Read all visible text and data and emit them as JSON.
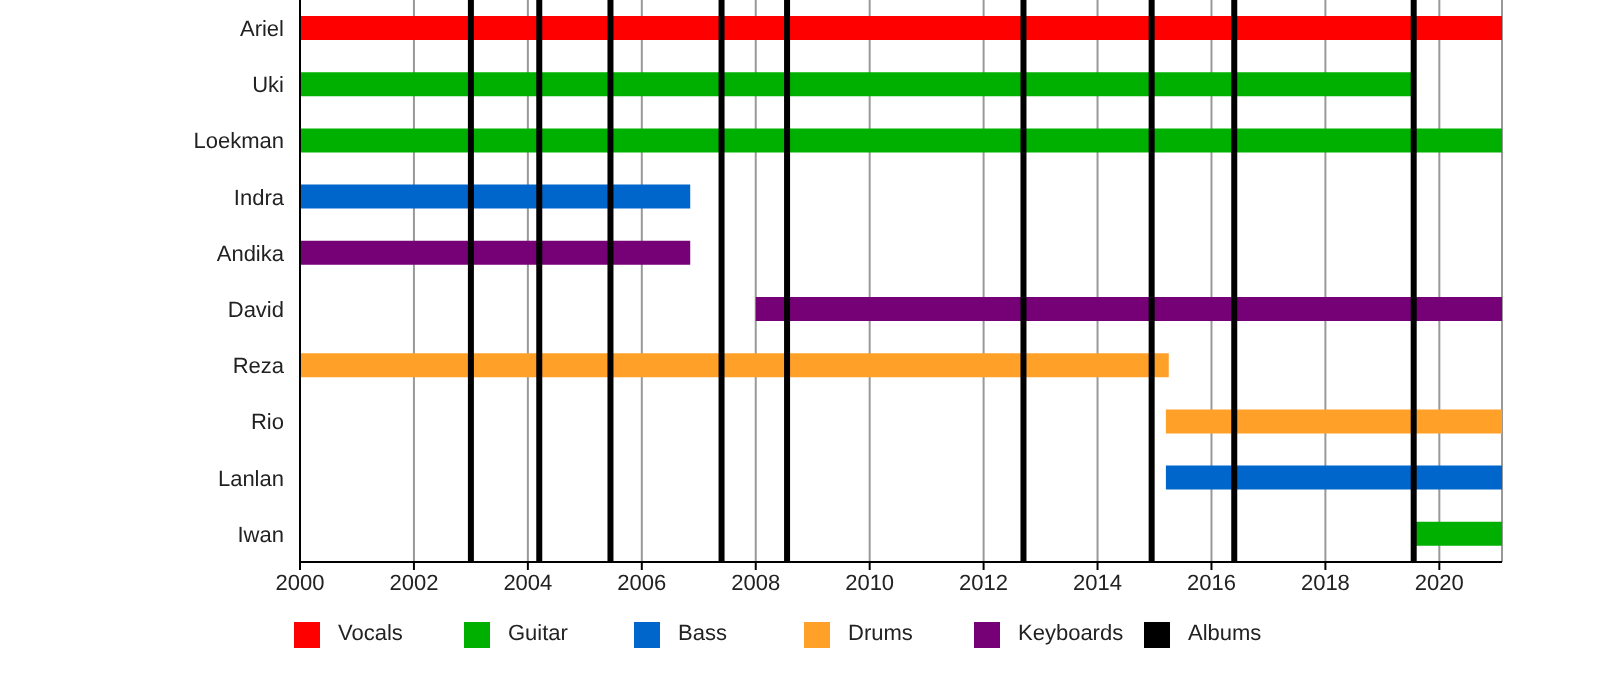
{
  "chart_data": {
    "type": "bar",
    "orientation": "horizontal",
    "categories": [
      "Ariel",
      "Uki",
      "Loekman",
      "Indra",
      "Andika",
      "David",
      "Reza",
      "Rio",
      "Lanlan",
      "Iwan"
    ],
    "series": [
      {
        "name": "Vocals",
        "color": "#ff0000",
        "values": [
          21.1,
          null,
          null,
          null,
          null,
          null,
          null,
          null,
          null,
          null
        ],
        "base": [
          2000,
          null,
          null,
          null,
          null,
          null,
          null,
          null,
          null,
          null
        ]
      },
      {
        "name": "Guitar",
        "color": "#00b000",
        "values": [
          null,
          19.55,
          21.1,
          null,
          null,
          null,
          null,
          null,
          null,
          1.55
        ],
        "base": [
          null,
          2000,
          2000,
          null,
          null,
          null,
          null,
          null,
          null,
          2019.55
        ]
      },
      {
        "name": "Bass",
        "color": "#0066cc",
        "values": [
          null,
          null,
          null,
          6.85,
          null,
          null,
          null,
          null,
          5.9,
          null
        ],
        "base": [
          null,
          null,
          null,
          2000,
          null,
          null,
          null,
          null,
          2015.2,
          null
        ]
      },
      {
        "name": "Drums",
        "color": "#ffa028",
        "values": [
          null,
          null,
          null,
          null,
          null,
          null,
          15.25,
          5.9,
          null,
          null
        ],
        "base": [
          null,
          null,
          null,
          null,
          null,
          null,
          2000,
          2015.2,
          null,
          null
        ]
      },
      {
        "name": "Keyboards",
        "color": "#760076",
        "values": [
          null,
          null,
          null,
          null,
          6.85,
          13.1,
          null,
          null,
          null,
          null
        ],
        "base": [
          null,
          null,
          null,
          null,
          2000,
          2008,
          null,
          null,
          null,
          null
        ]
      }
    ],
    "xlim": [
      2000,
      2021.1
    ],
    "xticks": [
      2000,
      2002,
      2004,
      2006,
      2008,
      2010,
      2012,
      2014,
      2016,
      2018,
      2020
    ],
    "grid": "x",
    "legend": "bottom",
    "ref_lines": [
      {
        "axis": "x",
        "value": 2003.0,
        "label": "Albums",
        "color": "#000000"
      },
      {
        "axis": "x",
        "value": 2004.2,
        "color": "#000000"
      },
      {
        "axis": "x",
        "value": 2005.45,
        "color": "#000000"
      },
      {
        "axis": "x",
        "value": 2007.4,
        "color": "#000000"
      },
      {
        "axis": "x",
        "value": 2008.55,
        "color": "#000000"
      },
      {
        "axis": "x",
        "value": 2012.7,
        "color": "#000000"
      },
      {
        "axis": "x",
        "value": 2014.95,
        "color": "#000000"
      },
      {
        "axis": "x",
        "value": 2016.4,
        "color": "#000000"
      },
      {
        "axis": "x",
        "value": 2019.55,
        "color": "#000000"
      }
    ]
  }
}
